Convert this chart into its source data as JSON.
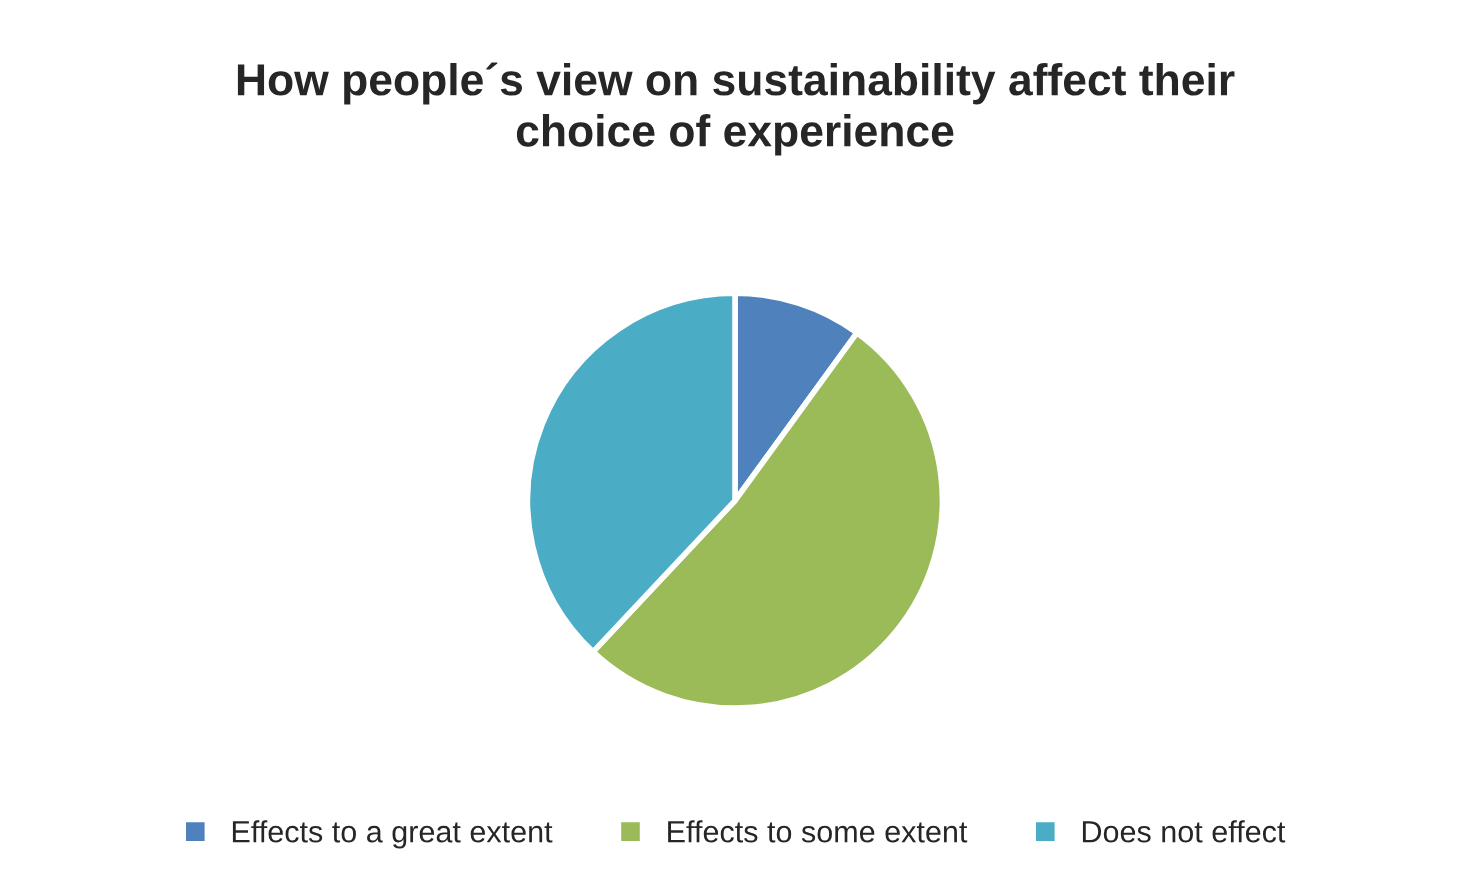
{
  "chart_data": {
    "type": "pie",
    "title": "How people´s view on sustainability affect their\nchoice of experience",
    "categories": [
      "Effects to a great extent",
      "Effects to some extent",
      "Does not effect"
    ],
    "values": [
      10,
      52,
      38
    ],
    "colors": [
      "#4f81bd",
      "#9bbb59",
      "#4bacc6"
    ],
    "legend": "bottom"
  }
}
